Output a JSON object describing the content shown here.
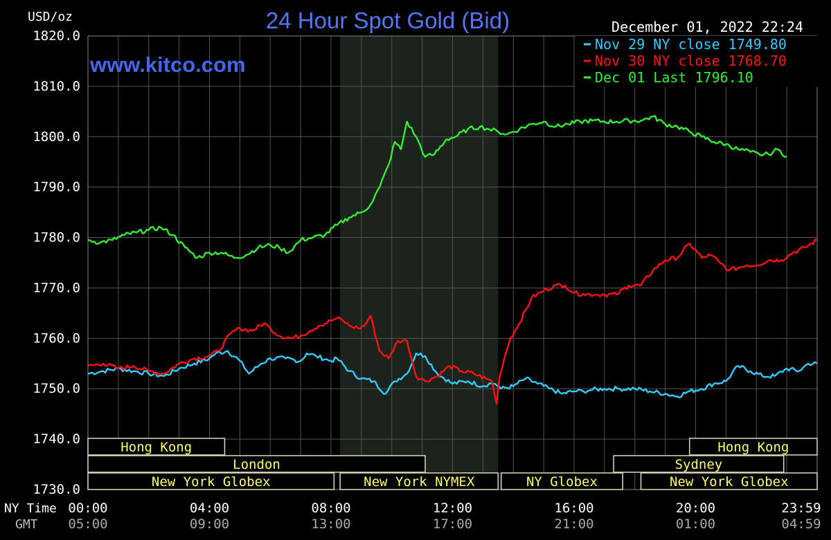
{
  "header": {
    "title": "24 Hour Spot Gold (Bid)",
    "unit": "USD/oz",
    "website": "www.kitco.com",
    "datetime": "December 01, 2022 22:24"
  },
  "footer": {
    "ny_time_label": "NY Time",
    "gmt_label": "GMT"
  },
  "colors": {
    "background": "#000000",
    "grid": "#555555",
    "title": "#5577ee",
    "website": "#4466ee",
    "text": "#ffffff",
    "session_text": "#ffff66",
    "session_border": "#ddddbb",
    "nymex_shade": "#1c231c"
  },
  "sessions": [
    {
      "label": "Hong Kong",
      "row": 0,
      "start": 0,
      "end": 4.5
    },
    {
      "label": "Hong Kong",
      "row": 0,
      "start": 19.8,
      "end": 24
    },
    {
      "label": "London",
      "row": 1,
      "start": 0,
      "end": 11.1
    },
    {
      "label": "Sydney",
      "row": 1,
      "start": 17.3,
      "end": 22.9
    },
    {
      "label": "New York Globex",
      "row": 2,
      "start": 0,
      "end": 8.1
    },
    {
      "label": "New York NYMEX",
      "row": 2,
      "start": 8.3,
      "end": 13.5
    },
    {
      "label": "NY Globex",
      "row": 2,
      "start": 13.6,
      "end": 17.6
    },
    {
      "label": "New York Globex",
      "row": 2,
      "start": 18.2,
      "end": 24
    }
  ],
  "nymex_hours": {
    "start": 8.3,
    "end": 13.5
  },
  "chart_data": {
    "type": "line",
    "ylim": [
      1730,
      1820
    ],
    "xlim": [
      0,
      24
    ],
    "y_ticks": [
      {
        "value": 1820,
        "label": "1820.0"
      },
      {
        "value": 1810,
        "label": "1810.0"
      },
      {
        "value": 1800,
        "label": "1800.0"
      },
      {
        "value": 1790,
        "label": "1790.0"
      },
      {
        "value": 1780,
        "label": "1780.0"
      },
      {
        "value": 1770,
        "label": "1770.0"
      },
      {
        "value": 1760,
        "label": "1760.0"
      },
      {
        "value": 1750,
        "label": "1750.0"
      },
      {
        "value": 1740,
        "label": "1740.0"
      },
      {
        "value": 1730,
        "label": "1730.0"
      }
    ],
    "x_ticks": [
      {
        "hour": 0,
        "ny": "00:00",
        "gmt": "05:00"
      },
      {
        "hour": 4,
        "ny": "04:00",
        "gmt": "09:00"
      },
      {
        "hour": 8,
        "ny": "08:00",
        "gmt": "13:00"
      },
      {
        "hour": 12,
        "ny": "12:00",
        "gmt": "17:00"
      },
      {
        "hour": 16,
        "ny": "16:00",
        "gmt": "21:00"
      },
      {
        "hour": 20,
        "ny": "20:00",
        "gmt": "01:00"
      },
      {
        "hour": 23.983,
        "ny": "23:59",
        "gmt": "04:59"
      }
    ],
    "grid": true,
    "legend_position": "top-right",
    "series": [
      {
        "label": "Nov 29 NY close 1749.80",
        "color": "#33ccff",
        "x": [
          0,
          0.5,
          1,
          1.5,
          2,
          2.5,
          3,
          3.5,
          4,
          4.2,
          4.6,
          5,
          5.3,
          5.7,
          6,
          6.5,
          7,
          7.2,
          7.5,
          8,
          8.2,
          8.6,
          9,
          9.4,
          9.8,
          10.1,
          10.5,
          10.8,
          11.1,
          11.5,
          12,
          12.5,
          13,
          13.2,
          13.4,
          13.6,
          14,
          14.4,
          14.8,
          15.2,
          15.6,
          16,
          16.3,
          16.6,
          17,
          17.5,
          18,
          18.5,
          19,
          19.4,
          19.8,
          20.2,
          20.6,
          21,
          21.4,
          21.8,
          22.2,
          22.6,
          23,
          23.4,
          23.7,
          24
        ],
        "y": [
          1753,
          1753.5,
          1754,
          1753.5,
          1753,
          1752.5,
          1754,
          1755,
          1756,
          1757,
          1757.5,
          1755.5,
          1753,
          1755,
          1756,
          1756,
          1755.5,
          1757,
          1756.5,
          1755.5,
          1756,
          1753.5,
          1752,
          1751.5,
          1749,
          1751.5,
          1753,
          1757,
          1756.5,
          1753,
          1751,
          1751.5,
          1750.5,
          1751,
          1751,
          1750,
          1750.5,
          1752,
          1751,
          1750,
          1749,
          1749.5,
          1749.5,
          1749.8,
          1750,
          1750,
          1750,
          1749.5,
          1749,
          1748.5,
          1749.5,
          1750,
          1751,
          1751.5,
          1754.5,
          1753.5,
          1752.5,
          1752.5,
          1754,
          1753.5,
          1755,
          1755
        ]
      },
      {
        "label": "Nov 30 NY close 1768.70",
        "color": "#ff1111",
        "x": [
          0,
          0.5,
          1,
          1.5,
          2,
          2.5,
          3,
          3.5,
          4,
          4.3,
          4.7,
          5,
          5.4,
          5.8,
          6,
          6.3,
          6.7,
          7,
          7.3,
          7.6,
          8,
          8.2,
          8.4,
          8.6,
          8.9,
          9.1,
          9.3,
          9.6,
          9.9,
          10.2,
          10.5,
          10.8,
          11.1,
          11.5,
          11.9,
          12.3,
          12.7,
          13.1,
          13.3,
          13.45,
          13.55,
          13.7,
          13.9,
          14.2,
          14.6,
          15,
          15.4,
          15.7,
          16,
          16.3,
          16.7,
          17,
          17.4,
          17.8,
          18.2,
          18.6,
          19,
          19.4,
          19.8,
          20.2,
          20.5,
          20.8,
          21.1,
          21.4,
          21.7,
          22,
          22.4,
          22.8,
          23.2,
          23.6,
          24
        ],
        "y": [
          1754.5,
          1755,
          1754,
          1754.5,
          1753.5,
          1753,
          1755,
          1756,
          1756.5,
          1757.5,
          1761,
          1762,
          1761.5,
          1763,
          1762,
          1760.5,
          1760,
          1760.5,
          1761.5,
          1762.5,
          1763.5,
          1764,
          1763.5,
          1762.5,
          1762,
          1762.5,
          1764.5,
          1757.5,
          1756,
          1759.5,
          1759.5,
          1752.5,
          1751.5,
          1752.5,
          1754.5,
          1753.5,
          1753,
          1752,
          1751.5,
          1747,
          1752.5,
          1756,
          1760,
          1763,
          1768,
          1769.5,
          1770.5,
          1770.5,
          1769,
          1768.8,
          1768.7,
          1768.7,
          1768.7,
          1770.5,
          1770.5,
          1773.5,
          1775.5,
          1776,
          1778.8,
          1776,
          1776.5,
          1775,
          1773.5,
          1774,
          1774.5,
          1774.5,
          1775.5,
          1775.5,
          1777,
          1778,
          1779.5
        ]
      },
      {
        "label": "Dec 01 Last 1796.10",
        "color": "#33ee33",
        "x": [
          0,
          0.4,
          0.8,
          1.2,
          1.6,
          2,
          2.4,
          2.8,
          3.2,
          3.6,
          4,
          4.4,
          4.8,
          5.2,
          5.6,
          6,
          6.3,
          6.6,
          7,
          7.4,
          7.8,
          8.2,
          8.6,
          9,
          9.3,
          9.6,
          9.9,
          10.1,
          10.3,
          10.5,
          10.8,
          11.1,
          11.4,
          11.8,
          12.1,
          12.5,
          12.9,
          13.2,
          13.5,
          13.8,
          14.2,
          14.6,
          15,
          15.4,
          15.8,
          16.2,
          16.6,
          17,
          17.4,
          17.8,
          18.2,
          18.6,
          19,
          19.4,
          19.8,
          20.2,
          20.6,
          21,
          21.4,
          21.8,
          22.1,
          22.4,
          22.7,
          23
        ],
        "y": [
          1779.5,
          1779,
          1779.5,
          1780.5,
          1781,
          1781.5,
          1782,
          1780.5,
          1778,
          1776,
          1777,
          1777,
          1776,
          1776.5,
          1778,
          1778.5,
          1778,
          1777,
          1779.5,
          1780,
          1780.5,
          1782.5,
          1784,
          1785,
          1786.5,
          1790,
          1794.5,
          1799,
          1797.5,
          1803,
          1800,
          1796,
          1796.5,
          1799.5,
          1800,
          1801.5,
          1802,
          1801.5,
          1801,
          1800.5,
          1801.5,
          1802.5,
          1803,
          1802,
          1802.5,
          1803,
          1803.2,
          1803,
          1803,
          1803.2,
          1803.2,
          1804,
          1802.5,
          1802,
          1801,
          1800,
          1799,
          1798.5,
          1797.5,
          1797,
          1796.5,
          1796.5,
          1797.5,
          1796.1
        ]
      }
    ]
  }
}
